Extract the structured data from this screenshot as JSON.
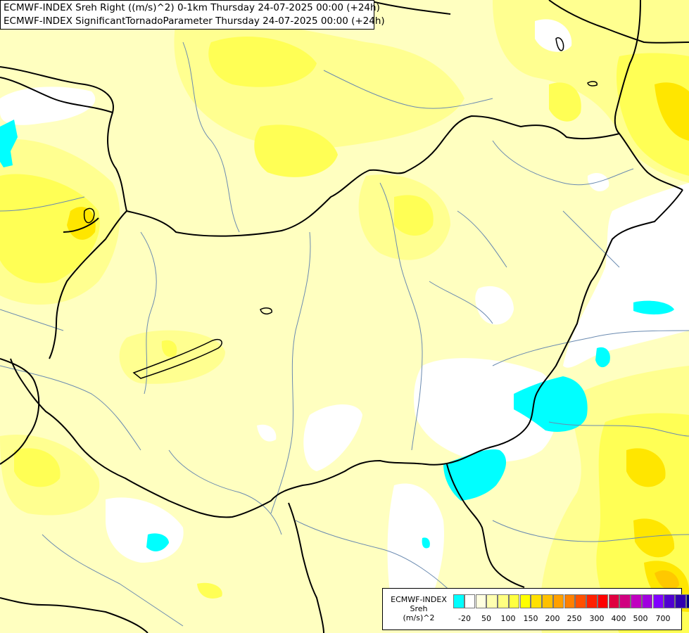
{
  "header": {
    "line1": "ECMWF-INDEX Sreh Right ((m/s)^2) 0-1km Thursday 24-07-2025 00:00 (+24h)",
    "line2": "ECMWF-INDEX SignificantTornadoParameter Thursday 24-07-2025 00:00 (+24h)"
  },
  "legend": {
    "name_line1": "ECMWF-INDEX",
    "name_line2": "Sreh",
    "name_line3": "(m/s)^2",
    "colors": [
      "#00ffff",
      "#ffffff",
      "#ffffe0",
      "#ffffb0",
      "#ffff80",
      "#ffff40",
      "#ffff00",
      "#ffe000",
      "#ffc000",
      "#ffa000",
      "#ff8000",
      "#ff5000",
      "#ff2000",
      "#ff0000",
      "#e00040",
      "#d00080",
      "#c000c0",
      "#a000e0",
      "#8000ff",
      "#5000d0",
      "#3000b0",
      "#000080"
    ],
    "ticks": [
      "-20",
      "50",
      "100",
      "150",
      "200",
      "250",
      "300",
      "400",
      "500",
      "700"
    ]
  },
  "map_colors": {
    "base": "#ffffc0",
    "light_yellow": "#ffff90",
    "yellow": "#ffff50",
    "deep_yellow": "#ffee00",
    "orange": "#ffcc00",
    "white": "#ffffff",
    "cyan": "#00ffff",
    "border": "#000000",
    "river": "#6a8ab0"
  }
}
